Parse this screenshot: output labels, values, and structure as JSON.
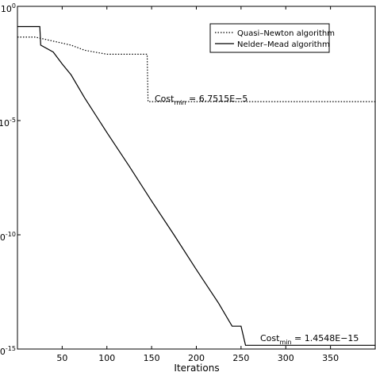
{
  "chart_data": {
    "type": "line",
    "x_label": "Iterations",
    "xlim": [
      0,
      400
    ],
    "xticks": [
      50,
      100,
      150,
      200,
      250,
      300,
      350
    ],
    "ylim": [
      1e-15,
      1
    ],
    "log_y": true,
    "yticks": [
      {
        "value": 1,
        "label": "10^0"
      },
      {
        "value": 1e-05,
        "label": "10^-5"
      },
      {
        "value": 1e-10,
        "label": "10^-10"
      },
      {
        "value": 1e-15,
        "label": "10^-15"
      }
    ],
    "legend": "upper right",
    "series": [
      {
        "name": "Quasi–Newton algorithm",
        "color": "#000000",
        "dash": "dotted",
        "x": [
          0,
          20,
          40,
          60,
          75,
          100,
          145,
          146,
          400
        ],
        "values": [
          0.045,
          0.045,
          0.03,
          0.02,
          0.012,
          0.008,
          0.008,
          6.7515e-05,
          6.7515e-05
        ],
        "annotation": {
          "text": "Cost",
          "sub": "min",
          "rest": " = 6.7515E−5"
        }
      },
      {
        "name": "Nelder–Mead algorithm",
        "color": "#000000",
        "dash": "solid",
        "x": [
          0,
          25,
          26,
          40,
          50,
          60,
          75,
          100,
          125,
          150,
          175,
          200,
          225,
          240,
          250,
          255,
          400
        ],
        "values": [
          0.13,
          0.13,
          0.02,
          0.01,
          0.003,
          0.001,
          0.0001,
          3e-06,
          1e-07,
          3e-09,
          1e-10,
          3e-12,
          1e-13,
          1e-14,
          1e-14,
          1.4548e-15,
          1.4548e-15
        ],
        "annotation": {
          "text": "Cost",
          "sub": "min",
          "rest": " = 1.4548E−15"
        }
      }
    ]
  }
}
